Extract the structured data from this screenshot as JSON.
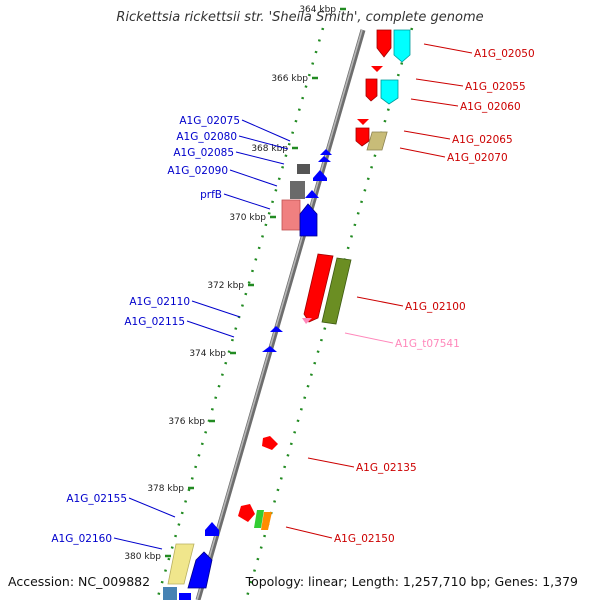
{
  "title": "Rickettsia rickettsii str. 'Sheila Smith', complete genome",
  "footer": {
    "accession": "Accession: NC_009882",
    "stats": "Topology: linear; Length: 1,257,710 bp; Genes: 1,379"
  },
  "colors": {
    "plus_label": "#cc0000",
    "minus_label": "#0000cc",
    "trna_label": "#ff88bb",
    "tick": "#228b22",
    "backbone": "#888888"
  },
  "ticks": [
    {
      "label": "364 kbp"
    },
    {
      "label": "366 kbp"
    },
    {
      "label": "368 kbp"
    },
    {
      "label": "370 kbp"
    },
    {
      "label": "372 kbp"
    },
    {
      "label": "374 kbp"
    },
    {
      "label": "376 kbp"
    },
    {
      "label": "378 kbp"
    },
    {
      "label": "380 kbp"
    }
  ],
  "genes_plus": [
    {
      "label": "A1G_02050"
    },
    {
      "label": "A1G_02055"
    },
    {
      "label": "A1G_02060"
    },
    {
      "label": "A1G_02065"
    },
    {
      "label": "A1G_02070"
    },
    {
      "label": "A1G_02100"
    },
    {
      "label": "A1G_t07541"
    },
    {
      "label": "A1G_02135"
    },
    {
      "label": "A1G_02150"
    }
  ],
  "genes_minus": [
    {
      "label": "A1G_02075"
    },
    {
      "label": "A1G_02080"
    },
    {
      "label": "A1G_02085"
    },
    {
      "label": "A1G_02090"
    },
    {
      "label": "prfB"
    },
    {
      "label": "A1G_02110"
    },
    {
      "label": "A1G_02115"
    },
    {
      "label": "A1G_02155"
    },
    {
      "label": "A1G_02160"
    }
  ]
}
